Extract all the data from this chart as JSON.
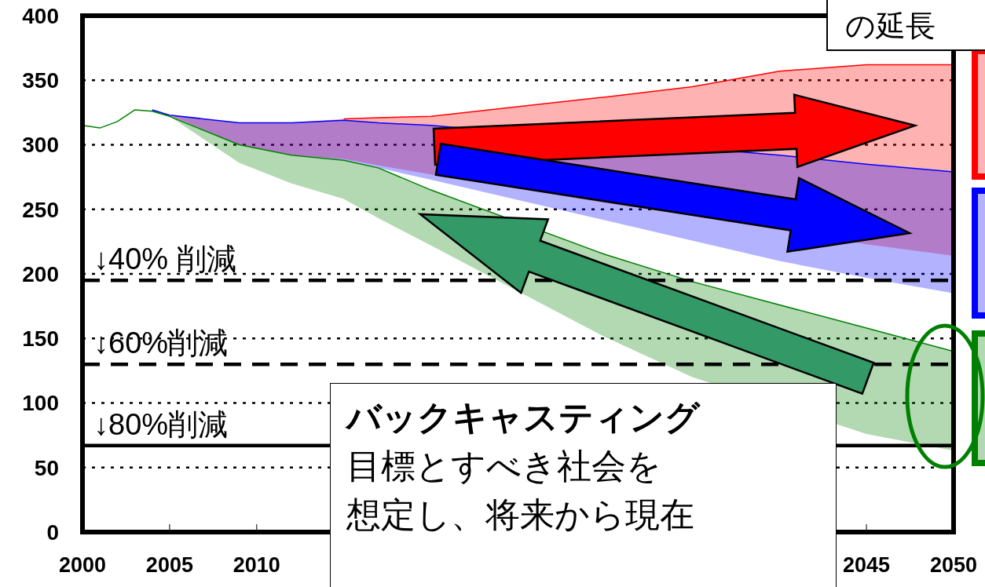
{
  "chart_data": {
    "type": "line",
    "series": [
      {
        "color": "#ff0000",
        "x": [
          2004,
          2005,
          2009,
          2012,
          2015,
          2017,
          2020,
          2030,
          2035,
          2040,
          2045,
          2050
        ],
        "values": [
          null,
          null,
          null,
          null,
          320,
          321,
          322,
          337,
          345,
          357,
          362,
          362
        ],
        "lower": [
          326,
          323,
          300,
          292,
          289,
          284,
          277,
          255,
          245,
          234,
          223,
          214
        ],
        "upper": [
          327,
          323,
          317,
          317,
          320,
          321,
          322,
          337,
          345,
          357,
          362,
          362
        ]
      },
      {
        "color": "#0000ff",
        "x": [
          2004,
          2005,
          2009,
          2012,
          2015,
          2017,
          2020,
          2040,
          2045,
          2050
        ],
        "values": [
          327,
          323,
          317,
          317,
          319,
          317,
          315,
          292,
          285,
          279
        ],
        "lower": [
          326,
          323,
          300,
          292,
          288,
          282,
          273,
          210,
          197,
          185
        ],
        "upper": [
          327,
          323,
          317,
          317,
          319,
          317,
          315,
          292,
          285,
          279
        ]
      },
      {
        "color": "#008000",
        "x": [
          2000,
          2001,
          2002,
          2003,
          2004,
          2005,
          2009,
          2012,
          2015,
          2017,
          2020,
          2030,
          2035,
          2045,
          2050
        ],
        "values": [
          315,
          313,
          318,
          327,
          326,
          322,
          300,
          292,
          288,
          282,
          265,
          215,
          194,
          158,
          140
        ],
        "lower": [
          315,
          313,
          318,
          327,
          326,
          322,
          286,
          270,
          258,
          243,
          222,
          151,
          120,
          76,
          63
        ],
        "upper": [
          315,
          313,
          318,
          327,
          326,
          322,
          300,
          292,
          288,
          282,
          265,
          215,
          194,
          158,
          140
        ]
      }
    ],
    "xlim": [
      2000,
      2050
    ],
    "xticks": [
      2000,
      2005,
      2010,
      2045,
      2050
    ],
    "ylim": [
      0,
      400
    ],
    "yticks": [
      0,
      50,
      100,
      150,
      200,
      250,
      300,
      350,
      400
    ],
    "grid": "y",
    "ref_lines": [
      {
        "axis": "y",
        "value": 195,
        "label": "↓40% 削減",
        "line_style": "dashed"
      },
      {
        "axis": "y",
        "value": 130,
        "label": "↓60%削減",
        "line_style": "dashed"
      },
      {
        "axis": "y",
        "value": 67,
        "label": "↓80%削減",
        "line_style": "solid"
      }
    ],
    "annotations": [
      "バックキャスティング",
      "目標とすべき社会を",
      "想定し、将来から現在",
      "の延長"
    ]
  }
}
